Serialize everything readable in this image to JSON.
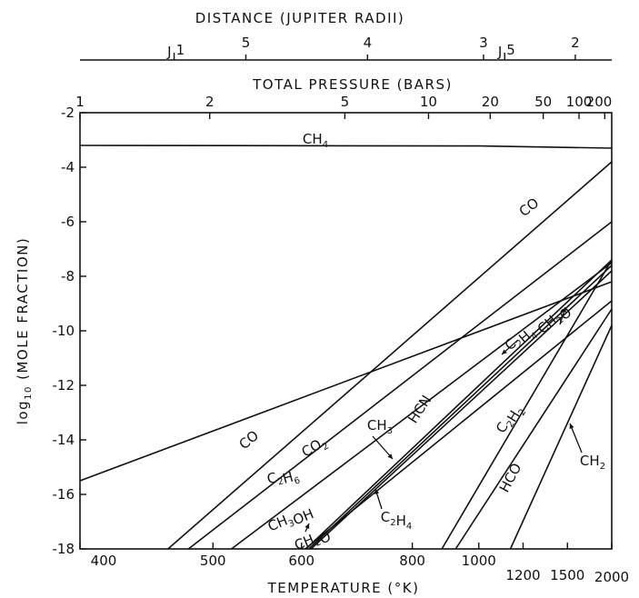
{
  "chart_data": {
    "type": "line",
    "title": "",
    "top_axis": {
      "label": "DISTANCE (JUPITER RADII)",
      "ticks": [
        {
          "label": "5",
          "temperature": 533
        },
        {
          "label": "4",
          "temperature": 705
        },
        {
          "label": "3",
          "temperature": 1018
        },
        {
          "label": "2",
          "temperature": 1570
        }
      ],
      "markers": [
        {
          "label": "J",
          "sub": "1",
          "temperature": 466
        },
        {
          "label": "J",
          "sub": "5",
          "temperature": 1108
        }
      ]
    },
    "pressure_axis": {
      "label": "TOTAL PRESSURE (BARS)",
      "ticks": [
        {
          "label": "1",
          "temperature": 400
        },
        {
          "label": "2",
          "temperature": 497
        },
        {
          "label": "5",
          "temperature": 665
        },
        {
          "label": "10",
          "temperature": 841
        },
        {
          "label": "20",
          "temperature": 1045
        },
        {
          "label": "50",
          "temperature": 1320
        },
        {
          "label": "100",
          "temperature": 1605
        },
        {
          "label": "200",
          "temperature": 1900
        }
      ]
    },
    "xlabel": "TEMPERATURE (°K)",
    "x_scale": "reciprocal",
    "xlim": [
      400,
      2000
    ],
    "x_ticks": [
      {
        "label": "400",
        "value": 400
      },
      {
        "label": "500",
        "value": 500
      },
      {
        "label": "600",
        "value": 600
      },
      {
        "label": "800",
        "value": 800
      },
      {
        "label": "1000",
        "value": 1000
      },
      {
        "label": "1200",
        "value": 1200
      },
      {
        "label": "1500",
        "value": 1500
      },
      {
        "label": "2000",
        "value": 2000
      }
    ],
    "ylabel": "log10 (MOLE FRACTION)",
    "ylim": [
      -18,
      -2
    ],
    "y_ticks": [
      -2,
      -4,
      -6,
      -8,
      -10,
      -12,
      -14,
      -16,
      -18
    ],
    "series": [
      {
        "name": "CH4",
        "points": [
          [
            400,
            -3.2
          ],
          [
            1000,
            -3.22
          ],
          [
            2000,
            -3.3
          ]
        ]
      },
      {
        "name": "CO",
        "points": [
          [
            461,
            -18
          ],
          [
            2000,
            -3.8
          ]
        ]
      },
      {
        "name": "C2H6",
        "points": [
          [
            400,
            -15.5
          ],
          [
            2000,
            -8.2
          ]
        ]
      },
      {
        "name": "CO2",
        "points": [
          [
            478,
            -18
          ],
          [
            2000,
            -6.0
          ]
        ]
      },
      {
        "name": "CH3OH",
        "points": [
          [
            518,
            -18
          ],
          [
            2000,
            -7.5
          ]
        ]
      },
      {
        "name": "CH2O",
        "points": [
          [
            605,
            -18
          ],
          [
            2000,
            -8.9
          ]
        ]
      },
      {
        "name": "HCN",
        "points": [
          [
            606,
            -18
          ],
          [
            2000,
            -7.4
          ]
        ]
      },
      {
        "name": "CH3",
        "points": [
          [
            610,
            -18
          ],
          [
            2000,
            -7.6
          ]
        ]
      },
      {
        "name": "C2H4",
        "points": [
          [
            613,
            -18
          ],
          [
            2000,
            -7.8
          ]
        ]
      },
      {
        "name": "C2H2",
        "points": [
          [
            878,
            -18
          ],
          [
            2000,
            -7.4
          ]
        ]
      },
      {
        "name": "HCO",
        "points": [
          [
            920,
            -18
          ],
          [
            2000,
            -9.2
          ]
        ]
      },
      {
        "name": "CH2",
        "points": [
          [
            1135,
            -18
          ],
          [
            2000,
            -9.8
          ]
        ]
      }
    ],
    "annotations": [
      {
        "base": "CH",
        "sub": "4"
      },
      {
        "base": "CO",
        "sub": ""
      },
      {
        "base": "C",
        "sub": "2",
        "base2": "H",
        "sub2": "6"
      },
      {
        "base": "CO",
        "sub": ""
      },
      {
        "base": "CO",
        "sub": "2"
      },
      {
        "base": "CH",
        "sub": "3",
        "suffix": "OH"
      },
      {
        "base": "CH",
        "sub": "2",
        "suffix": "O"
      },
      {
        "base": "CH",
        "sub": "3"
      },
      {
        "base": "HCN",
        "sub": ""
      },
      {
        "base": "C",
        "sub": "2",
        "base2": "H",
        "sub2": "4"
      },
      {
        "base": "C",
        "sub": "2",
        "base2": "H",
        "sub2": "2"
      },
      {
        "base": "HCO",
        "sub": ""
      },
      {
        "base": "CH",
        "sub": "2"
      },
      {
        "base": "C",
        "sub": "2",
        "base2": "H",
        "sub2": "4"
      },
      {
        "base": "CH",
        "sub": "2",
        "suffix": "O"
      }
    ]
  }
}
